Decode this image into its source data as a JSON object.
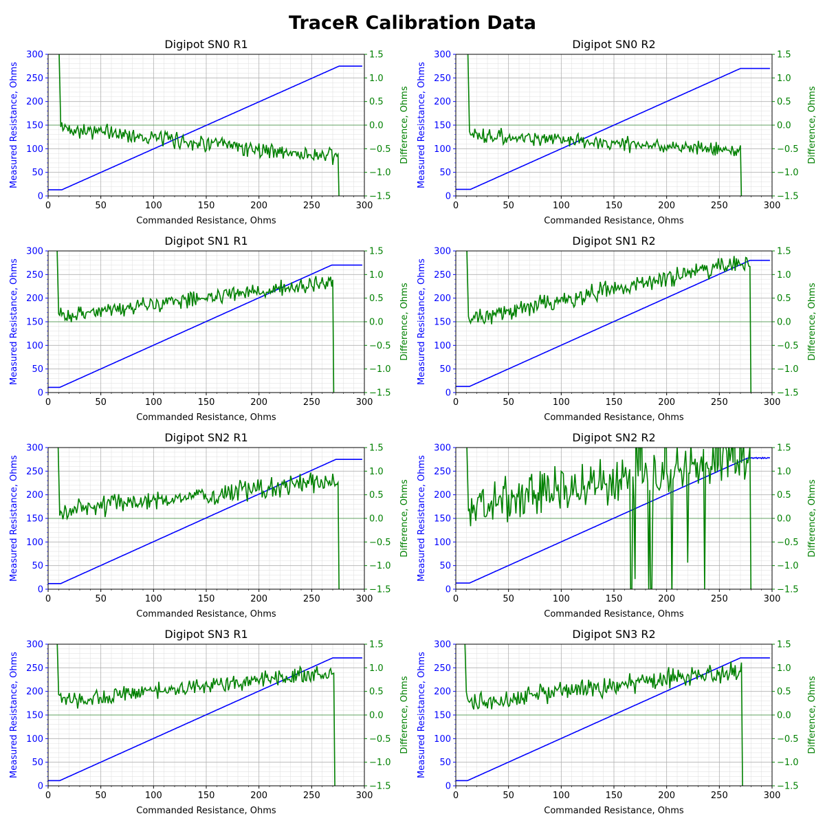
{
  "figure": {
    "title": "TraceR Calibration Data"
  },
  "colors": {
    "measured": "#0000ff",
    "difference": "#008000",
    "zero_line": "#008000",
    "grid_major": "#b0b0b0",
    "grid_minor": "#dddddd"
  },
  "chart_data": [
    {
      "type": "line",
      "title": "Digipot SN0 R1",
      "xlabel": "Commanded Resistance, Ohms",
      "ylabel": "Measured Resistance, Ohms",
      "y2label": "Difference, Ohms",
      "xlim": [
        0,
        300
      ],
      "ylim": [
        0,
        300
      ],
      "y2lim": [
        -1.5,
        1.5
      ],
      "x_ticks": [
        "0",
        "50",
        "100",
        "150",
        "200",
        "250",
        "300"
      ],
      "y_ticks": [
        "0",
        "50",
        "100",
        "150",
        "200",
        "250",
        "300"
      ],
      "y2_ticks": [
        "−1.5",
        "−1.0",
        "−0.5",
        "0.0",
        "0.5",
        "1.0",
        "1.5"
      ],
      "grid": "on (major and minor)",
      "measured": {
        "x_floor": 13,
        "floor": 13,
        "x_cap": 276,
        "cap": 275
      },
      "difference": {
        "start": 2.0,
        "trend_start": -0.05,
        "trend_end": -0.7,
        "noise": 0.13,
        "end_x": 276,
        "end": -1.6
      }
    },
    {
      "type": "line",
      "title": "Digipot SN0 R2",
      "xlabel": "Commanded Resistance, Ohms",
      "ylabel": "Measured Resistance, Ohms",
      "y2label": "Difference, Ohms",
      "xlim": [
        0,
        300
      ],
      "ylim": [
        0,
        300
      ],
      "y2lim": [
        -1.5,
        1.5
      ],
      "x_ticks": [
        "0",
        "50",
        "100",
        "150",
        "200",
        "250",
        "300"
      ],
      "y_ticks": [
        "0",
        "50",
        "100",
        "150",
        "200",
        "250",
        "300"
      ],
      "y2_ticks": [
        "−1.5",
        "−1.0",
        "−0.5",
        "0.0",
        "0.5",
        "1.0",
        "1.5"
      ],
      "grid": "on (major and minor)",
      "measured": {
        "x_floor": 14,
        "floor": 14,
        "x_cap": 270,
        "cap": 270
      },
      "difference": {
        "start": 2.0,
        "trend_start": -0.2,
        "trend_end": -0.55,
        "noise": 0.12,
        "end_x": 271,
        "end": -1.6
      }
    },
    {
      "type": "line",
      "title": "Digipot SN1 R1",
      "xlabel": "Commanded Resistance, Ohms",
      "ylabel": "Measured Resistance, Ohms",
      "y2label": "Difference, Ohms",
      "xlim": [
        0,
        300
      ],
      "ylim": [
        0,
        300
      ],
      "y2lim": [
        -1.5,
        1.5
      ],
      "x_ticks": [
        "0",
        "50",
        "100",
        "150",
        "200",
        "250",
        "300"
      ],
      "y_ticks": [
        "0",
        "50",
        "100",
        "150",
        "200",
        "250",
        "300"
      ],
      "y2_ticks": [
        "−1.5",
        "−1.0",
        "−0.5",
        "0.0",
        "0.5",
        "1.0",
        "1.5"
      ],
      "grid": "on (major and minor)",
      "measured": {
        "x_floor": 11,
        "floor": 11,
        "x_cap": 269,
        "cap": 270
      },
      "difference": {
        "start": 2.0,
        "trend_start": 0.1,
        "trend_end": 0.85,
        "noise": 0.13,
        "end_x": 271,
        "end": -1.6
      }
    },
    {
      "type": "line",
      "title": "Digipot SN1 R2",
      "xlabel": "Commanded Resistance, Ohms",
      "ylabel": "Measured Resistance, Ohms",
      "y2label": "Difference, Ohms",
      "xlim": [
        0,
        300
      ],
      "ylim": [
        0,
        300
      ],
      "y2lim": [
        -1.5,
        1.5
      ],
      "x_ticks": [
        "0",
        "50",
        "100",
        "150",
        "200",
        "250",
        "300"
      ],
      "y_ticks": [
        "0",
        "50",
        "100",
        "150",
        "200",
        "250",
        "300"
      ],
      "y2_ticks": [
        "−1.5",
        "−1.0",
        "−0.5",
        "0.0",
        "0.5",
        "1.0",
        "1.5"
      ],
      "grid": "on (major and minor)",
      "measured": {
        "x_floor": 13,
        "floor": 13,
        "x_cap": 279,
        "cap": 280
      },
      "difference": {
        "start": 2.0,
        "trend_start": 0.05,
        "trend_end": 1.3,
        "noise": 0.15,
        "end_x": 280,
        "end": -1.6
      }
    },
    {
      "type": "line",
      "title": "Digipot SN2 R1",
      "xlabel": "Commanded Resistance, Ohms",
      "ylabel": "Measured Resistance, Ohms",
      "y2label": "Difference, Ohms",
      "xlim": [
        0,
        300
      ],
      "ylim": [
        0,
        300
      ],
      "y2lim": [
        -1.5,
        1.5
      ],
      "x_ticks": [
        "0",
        "50",
        "100",
        "150",
        "200",
        "250",
        "300"
      ],
      "y_ticks": [
        "0",
        "50",
        "100",
        "150",
        "200",
        "250",
        "300"
      ],
      "y2_ticks": [
        "−1.5",
        "−1.0",
        "−0.5",
        "0.0",
        "0.5",
        "1.0",
        "1.5"
      ],
      "grid": "on (major and minor)",
      "measured": {
        "x_floor": 12,
        "floor": 12,
        "x_cap": 273,
        "cap": 275
      },
      "difference": {
        "start": 2.0,
        "trend_start": 0.15,
        "trend_end": 0.8,
        "noise": 0.16,
        "end_x": 276,
        "end": -1.6
      }
    },
    {
      "type": "line",
      "title": "Digipot SN2 R2",
      "xlabel": "Commanded Resistance, Ohms",
      "ylabel": "Measured Resistance, Ohms",
      "y2label": "Difference, Ohms",
      "xlim": [
        0,
        300
      ],
      "ylim": [
        0,
        300
      ],
      "y2lim": [
        -1.5,
        1.5
      ],
      "x_ticks": [
        "0",
        "50",
        "100",
        "150",
        "200",
        "250",
        "300"
      ],
      "y_ticks": [
        "0",
        "50",
        "100",
        "150",
        "200",
        "250",
        "300"
      ],
      "y2_ticks": [
        "−1.5",
        "−1.0",
        "−0.5",
        "0.0",
        "0.5",
        "1.0",
        "1.5"
      ],
      "grid": "on (major and minor)",
      "measured": {
        "x_floor": 13,
        "floor": 13,
        "x_cap": 277,
        "cap": 278
      },
      "difference": {
        "start": 2.0,
        "trend_start": 0.25,
        "trend_end": 1.25,
        "noise": 0.35,
        "end_x": 280,
        "end": -1.6
      }
    },
    {
      "type": "line",
      "title": "Digipot SN3 R1",
      "xlabel": "Commanded Resistance, Ohms",
      "ylabel": "Measured Resistance, Ohms",
      "y2label": "Difference, Ohms",
      "xlim": [
        0,
        300
      ],
      "ylim": [
        0,
        300
      ],
      "y2lim": [
        -1.5,
        1.5
      ],
      "x_ticks": [
        "0",
        "50",
        "100",
        "150",
        "200",
        "250",
        "300"
      ],
      "y_ticks": [
        "0",
        "50",
        "100",
        "150",
        "200",
        "250",
        "300"
      ],
      "y2_ticks": [
        "−1.5",
        "−1.0",
        "−0.5",
        "0.0",
        "0.5",
        "1.0",
        "1.5"
      ],
      "grid": "on (major and minor)",
      "measured": {
        "x_floor": 11,
        "floor": 11,
        "x_cap": 270,
        "cap": 271
      },
      "difference": {
        "start": 2.0,
        "trend_start": 0.3,
        "trend_end": 0.9,
        "noise": 0.13,
        "end_x": 272,
        "end": -1.6
      }
    },
    {
      "type": "line",
      "title": "Digipot SN3 R2",
      "xlabel": "Commanded Resistance, Ohms",
      "ylabel": "Measured Resistance, Ohms",
      "y2label": "Difference, Ohms",
      "xlim": [
        0,
        300
      ],
      "ylim": [
        0,
        300
      ],
      "y2lim": [
        -1.5,
        1.5
      ],
      "x_ticks": [
        "0",
        "50",
        "100",
        "150",
        "200",
        "250",
        "300"
      ],
      "y_ticks": [
        "0",
        "50",
        "100",
        "150",
        "200",
        "250",
        "300"
      ],
      "y2_ticks": [
        "−1.5",
        "−1.0",
        "−0.5",
        "0.0",
        "0.5",
        "1.0",
        "1.5"
      ],
      "grid": "on (major and minor)",
      "measured": {
        "x_floor": 11,
        "floor": 11,
        "x_cap": 270,
        "cap": 271
      },
      "difference": {
        "start": 2.0,
        "trend_start": 0.25,
        "trend_end": 0.95,
        "noise": 0.16,
        "end_x": 272,
        "end": -1.6
      }
    }
  ]
}
